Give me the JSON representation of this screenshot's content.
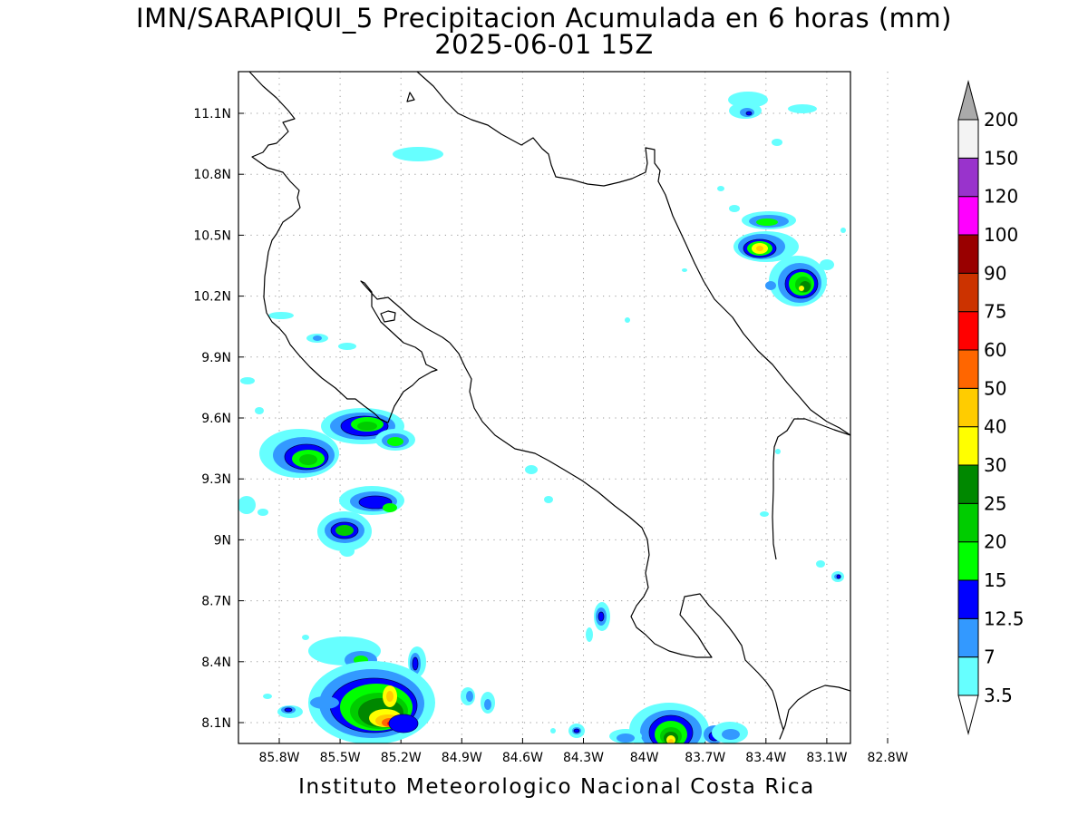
{
  "map": {
    "title_line1": "IMN/SARAPIQUI_5 Precipitacion Acumulada en 6 horas (mm)",
    "title_line2": "2025-06-01 15Z",
    "footer": "Instituto Meteorologico Nacional Costa Rica",
    "lon_ticks": [
      "85.8W",
      "85.5W",
      "85.2W",
      "84.9W",
      "84.6W",
      "84.3W",
      "84W",
      "83.7W",
      "83.4W",
      "83.1W",
      "82.8W"
    ],
    "lat_ticks": [
      "11.1N",
      "10.8N",
      "10.5N",
      "10.2N",
      "9.9N",
      "9.6N",
      "9.3N",
      "9N",
      "8.7N",
      "8.4N",
      "8.1N"
    ]
  },
  "colorbar": {
    "labels": [
      "3.5",
      "7",
      "12.5",
      "15",
      "20",
      "25",
      "30",
      "40",
      "50",
      "60",
      "75",
      "90",
      "100",
      "120",
      "150",
      "200"
    ],
    "colors": [
      "#66ffff",
      "#3399ff",
      "#0000ff",
      "#00ff00",
      "#00cc00",
      "#008800",
      "#ffff00",
      "#ffcc00",
      "#ff6600",
      "#ff0000",
      "#cc3300",
      "#990000",
      "#ff00ff",
      "#9933cc",
      "#f3f3f3",
      "#aaaaaa"
    ]
  },
  "colors": {
    "coastline": "#000000",
    "grid": "#999999"
  }
}
